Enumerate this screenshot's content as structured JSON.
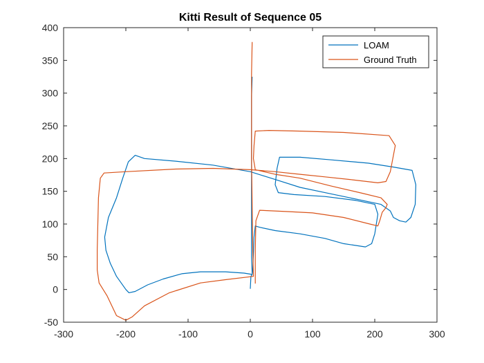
{
  "chart_data": {
    "type": "line",
    "title": "Kitti Result of Sequence 05",
    "xlabel": "",
    "ylabel": "",
    "xlim": [
      -300,
      300
    ],
    "ylim": [
      -50,
      400
    ],
    "xticks": [
      -300,
      -200,
      -100,
      0,
      100,
      200,
      300
    ],
    "yticks": [
      -50,
      0,
      50,
      100,
      150,
      200,
      250,
      300,
      350,
      400
    ],
    "grid": false,
    "legend_position": "top-right",
    "series": [
      {
        "name": "LOAM",
        "color": "#0072BD",
        "points": [
          [
            0,
            1
          ],
          [
            1,
            20
          ],
          [
            3,
            23
          ],
          [
            -10,
            25
          ],
          [
            -40,
            27
          ],
          [
            -80,
            27
          ],
          [
            -110,
            24
          ],
          [
            -140,
            16
          ],
          [
            -165,
            7
          ],
          [
            -185,
            -3
          ],
          [
            -195,
            -5
          ],
          [
            -200,
            0
          ],
          [
            -215,
            20
          ],
          [
            -225,
            40
          ],
          [
            -232,
            60
          ],
          [
            -234,
            80
          ],
          [
            -228,
            110
          ],
          [
            -215,
            140
          ],
          [
            -205,
            170
          ],
          [
            -196,
            195
          ],
          [
            -185,
            205
          ],
          [
            -170,
            200
          ],
          [
            -120,
            196
          ],
          [
            -60,
            190
          ],
          [
            0,
            180
          ],
          [
            40,
            168
          ],
          [
            80,
            156
          ],
          [
            120,
            148
          ],
          [
            160,
            140
          ],
          [
            210,
            130
          ],
          [
            225,
            120
          ],
          [
            230,
            110
          ],
          [
            240,
            105
          ],
          [
            250,
            103
          ],
          [
            258,
            110
          ],
          [
            265,
            130
          ],
          [
            266,
            160
          ],
          [
            260,
            182
          ],
          [
            230,
            187
          ],
          [
            190,
            193
          ],
          [
            130,
            198
          ],
          [
            80,
            202
          ],
          [
            47,
            202
          ],
          [
            43,
            185
          ],
          [
            40,
            160
          ],
          [
            45,
            148
          ],
          [
            70,
            145
          ],
          [
            120,
            142
          ],
          [
            170,
            136
          ],
          [
            200,
            130
          ],
          [
            205,
            115
          ],
          [
            200,
            85
          ],
          [
            195,
            70
          ],
          [
            185,
            65
          ],
          [
            150,
            70
          ],
          [
            120,
            78
          ],
          [
            80,
            85
          ],
          [
            40,
            90
          ],
          [
            15,
            95
          ],
          [
            8,
            97
          ],
          [
            6,
            80
          ],
          [
            5,
            55
          ],
          [
            4,
            30
          ],
          [
            3,
            24
          ],
          [
            2,
            50
          ],
          [
            2,
            120
          ],
          [
            2,
            180
          ],
          [
            2,
            250
          ],
          [
            2,
            295
          ],
          [
            3,
            325
          ]
        ]
      },
      {
        "name": "Ground Truth",
        "color": "#D95319",
        "points": [
          [
            3,
            378
          ],
          [
            2,
            330
          ],
          [
            2,
            270
          ],
          [
            2,
            200
          ],
          [
            3,
            130
          ],
          [
            4,
            60
          ],
          [
            5,
            20
          ],
          [
            -40,
            15
          ],
          [
            -80,
            10
          ],
          [
            -130,
            -5
          ],
          [
            -170,
            -25
          ],
          [
            -190,
            -42
          ],
          [
            -200,
            -47
          ],
          [
            -215,
            -40
          ],
          [
            -230,
            -10
          ],
          [
            -243,
            10
          ],
          [
            -246,
            30
          ],
          [
            -246,
            60
          ],
          [
            -245,
            100
          ],
          [
            -244,
            140
          ],
          [
            -241,
            170
          ],
          [
            -235,
            178
          ],
          [
            -200,
            180
          ],
          [
            -120,
            184
          ],
          [
            -60,
            185
          ],
          [
            0,
            183
          ],
          [
            40,
            180
          ],
          [
            80,
            176
          ],
          [
            120,
            172
          ],
          [
            160,
            168
          ],
          [
            205,
            163
          ],
          [
            218,
            165
          ],
          [
            225,
            180
          ],
          [
            230,
            205
          ],
          [
            233,
            220
          ],
          [
            223,
            235
          ],
          [
            150,
            240
          ],
          [
            80,
            242
          ],
          [
            30,
            243
          ],
          [
            8,
            242
          ],
          [
            6,
            220
          ],
          [
            5,
            200
          ],
          [
            8,
            183
          ],
          [
            40,
            176
          ],
          [
            80,
            170
          ],
          [
            130,
            158
          ],
          [
            180,
            147
          ],
          [
            210,
            140
          ],
          [
            220,
            130
          ],
          [
            218,
            125
          ],
          [
            212,
            118
          ],
          [
            208,
            105
          ],
          [
            205,
            97
          ],
          [
            192,
            100
          ],
          [
            150,
            110
          ],
          [
            100,
            117
          ],
          [
            60,
            119
          ],
          [
            15,
            121
          ],
          [
            9,
            105
          ],
          [
            8,
            60
          ],
          [
            8,
            30
          ],
          [
            8,
            9
          ]
        ]
      }
    ]
  }
}
